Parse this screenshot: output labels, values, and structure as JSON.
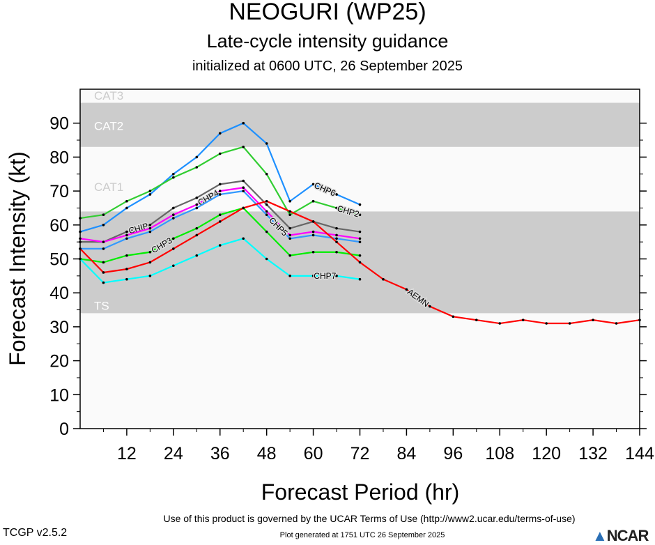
{
  "title": "NEOGURI (WP25)",
  "subtitle": "Late-cycle intensity guidance",
  "init": "initialized at 0600 UTC, 26 September 2025",
  "footer_terms": "Use of this product is governed by the UCAR Terms of Use (http://www2.ucar.edu/terms-of-use)",
  "footer_generated": "Plot generated at 1751 UTC   26 September 2025",
  "version": "TCGP v2.5.2",
  "logo": "NCAR",
  "chart_data": {
    "type": "line",
    "xlabel": "Forecast Period (hr)",
    "ylabel": "Forecast Intensity (kt)",
    "xlim": [
      0,
      144
    ],
    "ylim": [
      0,
      97
    ],
    "xticks": [
      12,
      24,
      36,
      48,
      60,
      72,
      84,
      96,
      108,
      120,
      132,
      144
    ],
    "yticks": [
      0,
      10,
      20,
      30,
      40,
      50,
      60,
      70,
      80,
      90
    ],
    "bands": [
      {
        "label": "TS",
        "from": 34,
        "to": 64,
        "color": "#cccccc"
      },
      {
        "label": "CAT1",
        "from": 64,
        "to": 83,
        "color": "#fafafa"
      },
      {
        "label": "CAT2",
        "from": 83,
        "to": 96,
        "color": "#cccccc"
      },
      {
        "label": "CAT3",
        "from": 96,
        "to": 113,
        "color": "#fafafa"
      }
    ],
    "below_band_color": "#fafafa",
    "series": [
      {
        "name": "CHP6",
        "color": "#1e90ff",
        "x": [
          0,
          6,
          12,
          18,
          24,
          30,
          36,
          42,
          48,
          54,
          60,
          66,
          72
        ],
        "values": [
          58,
          60,
          65,
          69,
          75,
          80,
          87,
          90,
          84,
          67,
          72,
          69,
          66
        ]
      },
      {
        "name": "CHP2",
        "color": "#32cd32",
        "x": [
          0,
          6,
          12,
          18,
          24,
          30,
          36,
          42,
          48,
          54,
          60,
          66,
          72
        ],
        "values": [
          62,
          63,
          67,
          70,
          74,
          77,
          81,
          83,
          75,
          63,
          67,
          65,
          63
        ]
      },
      {
        "name": "CHIP",
        "color": "#666666",
        "x": [
          0,
          6,
          12,
          18,
          24,
          30,
          36,
          42,
          48,
          54,
          60,
          66,
          72
        ],
        "values": [
          55,
          55,
          58,
          60,
          65,
          68,
          72,
          73,
          66,
          59,
          61,
          59,
          58
        ]
      },
      {
        "name": "CHP4",
        "color": "#ff00ff",
        "x": [
          0,
          6,
          12,
          18,
          24,
          30,
          36,
          42,
          48,
          54,
          60,
          66,
          72
        ],
        "values": [
          56,
          55,
          57,
          59,
          63,
          66,
          70,
          71,
          64,
          57,
          58,
          57,
          56
        ]
      },
      {
        "name": "CHP5",
        "color": "#3399ff",
        "x": [
          0,
          6,
          12,
          18,
          24,
          30,
          36,
          42,
          48,
          54,
          60,
          66,
          72
        ],
        "values": [
          53,
          53,
          56,
          58,
          62,
          65,
          69,
          70,
          63,
          56,
          57,
          56,
          55
        ]
      },
      {
        "name": "CHP3",
        "color": "#00ee00",
        "x": [
          0,
          6,
          12,
          18,
          24,
          30,
          36,
          42,
          48,
          54,
          60,
          66,
          72
        ],
        "values": [
          50,
          49,
          51,
          52,
          56,
          59,
          63,
          65,
          58,
          51,
          52,
          52,
          51
        ]
      },
      {
        "name": "CHP7",
        "color": "#00ffff",
        "x": [
          0,
          6,
          12,
          18,
          24,
          30,
          36,
          42,
          48,
          54,
          60,
          66,
          72
        ],
        "values": [
          50,
          43,
          44,
          45,
          48,
          51,
          54,
          56,
          50,
          45,
          45,
          45,
          44
        ]
      },
      {
        "name": "AEMN",
        "color": "#ff0000",
        "x": [
          0,
          6,
          12,
          18,
          24,
          30,
          36,
          42,
          48,
          54,
          60,
          66,
          72,
          78,
          84,
          90,
          96,
          102,
          108,
          114,
          120,
          126,
          132,
          138,
          144
        ],
        "values": [
          53,
          46,
          47,
          49,
          53,
          57,
          61,
          65,
          67,
          64,
          61,
          55,
          49,
          44,
          41,
          36,
          33,
          32,
          31,
          32,
          31,
          31,
          32,
          31,
          32
        ]
      }
    ]
  }
}
